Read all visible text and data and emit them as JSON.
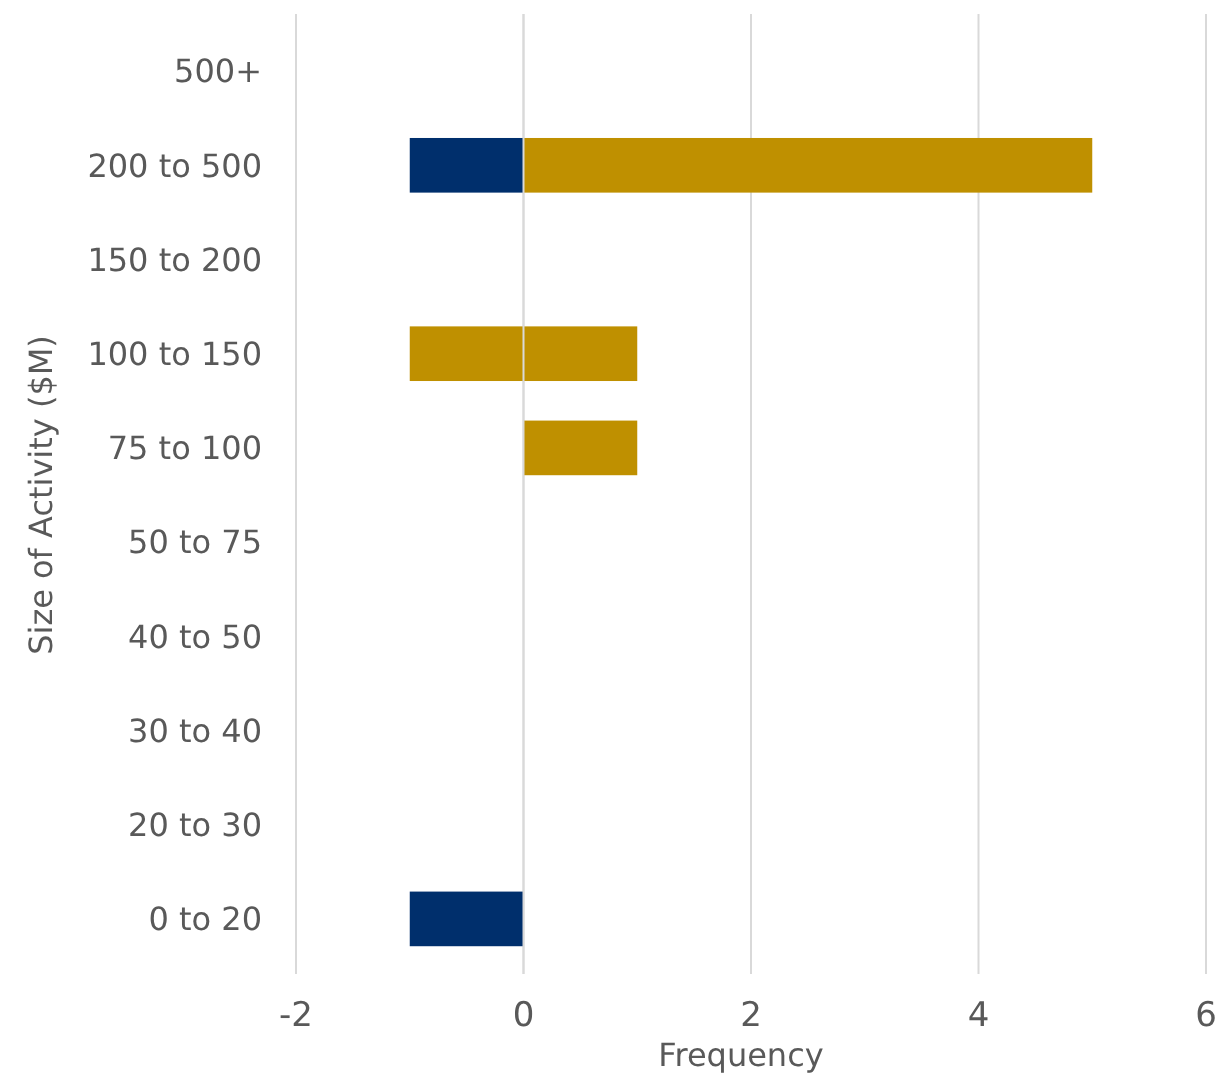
{
  "chart_data": {
    "type": "bar",
    "orientation": "horizontal",
    "stacked": true,
    "xlabel": "Frequency",
    "ylabel": "Size of Activity ($M)",
    "categories": [
      "500+",
      "200 to 500",
      "150 to 200",
      "100 to 150",
      "75 to 100",
      "50 to 75",
      "40 to 50",
      "30 to 40",
      "20 to 30",
      "0 to 20"
    ],
    "series": [
      {
        "color": "#002f6c",
        "values": [
          null,
          -1,
          null,
          null,
          null,
          null,
          null,
          null,
          null,
          -1
        ]
      },
      {
        "color": "#bf9000",
        "values": [
          null,
          5,
          null,
          1,
          1,
          null,
          null,
          null,
          null,
          null
        ]
      },
      {
        "color": "#bf9000",
        "values": [
          null,
          null,
          null,
          -1,
          null,
          null,
          null,
          null,
          null,
          null
        ]
      }
    ],
    "xlim": [
      -2,
      6
    ],
    "xticks": [
      -2,
      0,
      2,
      4,
      6
    ],
    "grid": "x"
  }
}
